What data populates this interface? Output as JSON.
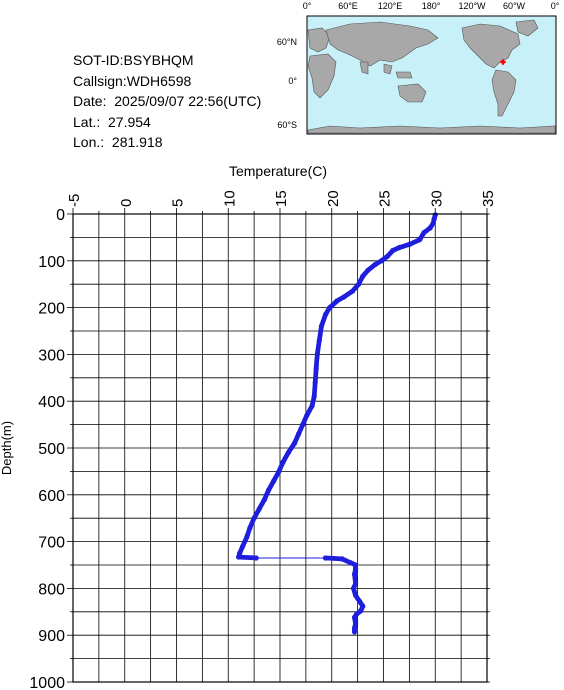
{
  "info": {
    "sot_id": "SOT-ID:BSYBHQM",
    "callsign": "Callsign:WDH6598",
    "date": "Date:  2025/09/07 22:56(UTC)",
    "lat": "Lat.:  27.954",
    "lon": "Lon.:  281.918"
  },
  "map": {
    "lon_labels": [
      "0°",
      "60°E",
      "120°E",
      "180°",
      "120°W",
      "60°W",
      "0°"
    ],
    "lat_labels": [
      "60°N",
      "0°",
      "60°S"
    ],
    "ocean_color": "#c8f0f8",
    "land_color": "#a8a8a8",
    "marker_color": "#ff0000"
  },
  "chart_data": {
    "type": "line",
    "xlabel": "Temperature(C)",
    "ylabel": "Depth(m)",
    "xlim": [
      -5,
      35
    ],
    "ylim": [
      0,
      1000
    ],
    "y_inverted": true,
    "x_ticks": [
      "-5",
      "0",
      "5",
      "10",
      "15",
      "20",
      "25",
      "30",
      "35"
    ],
    "y_ticks": [
      "0",
      "100",
      "200",
      "300",
      "400",
      "500",
      "600",
      "700",
      "800",
      "900",
      "1000"
    ],
    "grid": true,
    "line_color": "#1e1edc",
    "series": [
      {
        "points": [
          [
            30.0,
            2
          ],
          [
            29.9,
            10
          ],
          [
            29.8,
            20
          ],
          [
            29.5,
            30
          ],
          [
            28.9,
            40
          ],
          [
            28.5,
            55
          ],
          [
            27.5,
            65
          ],
          [
            26.5,
            72
          ],
          [
            25.9,
            78
          ],
          [
            25.4,
            90
          ],
          [
            24.8,
            100
          ],
          [
            24.2,
            108
          ],
          [
            23.5,
            120
          ],
          [
            23.0,
            133
          ],
          [
            22.6,
            150
          ],
          [
            22.0,
            165
          ],
          [
            21.2,
            177
          ],
          [
            20.5,
            186
          ],
          [
            19.8,
            200
          ],
          [
            19.4,
            215
          ],
          [
            19.0,
            240
          ],
          [
            18.8,
            270
          ],
          [
            18.6,
            300
          ],
          [
            18.5,
            330
          ],
          [
            18.4,
            360
          ],
          [
            18.3,
            390
          ],
          [
            18.1,
            410
          ],
          [
            17.6,
            430
          ],
          [
            17.2,
            450
          ],
          [
            16.8,
            470
          ],
          [
            16.4,
            490
          ],
          [
            15.8,
            510
          ],
          [
            15.3,
            530
          ],
          [
            14.9,
            550
          ],
          [
            14.4,
            570
          ],
          [
            13.9,
            590
          ],
          [
            13.5,
            610
          ],
          [
            13.0,
            630
          ],
          [
            12.5,
            650
          ],
          [
            12.1,
            670
          ],
          [
            11.8,
            690
          ],
          [
            11.4,
            710
          ],
          [
            11.1,
            725
          ],
          [
            11.0,
            733
          ],
          [
            12.7,
            735
          ],
          [
            19.4,
            735
          ],
          [
            21.0,
            737
          ],
          [
            21.8,
            745
          ],
          [
            22.3,
            750
          ],
          [
            22.3,
            758
          ],
          [
            22.2,
            770
          ],
          [
            22.3,
            790
          ],
          [
            22.1,
            800
          ],
          [
            22.3,
            815
          ],
          [
            22.7,
            828
          ],
          [
            23.0,
            838
          ],
          [
            22.8,
            848
          ],
          [
            22.4,
            855
          ],
          [
            22.2,
            862
          ],
          [
            22.3,
            875
          ],
          [
            22.2,
            885
          ],
          [
            22.2,
            893
          ]
        ]
      }
    ]
  }
}
